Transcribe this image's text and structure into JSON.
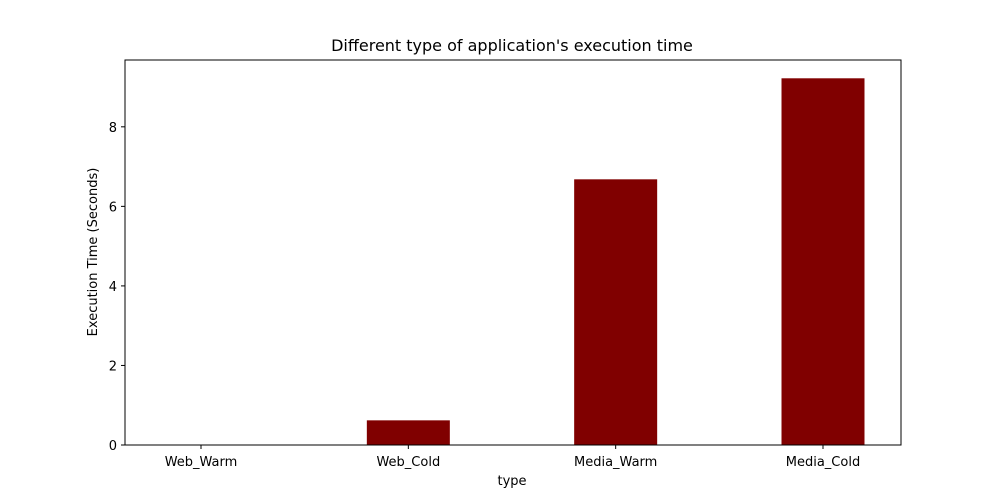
{
  "chart_data": {
    "type": "bar",
    "title": "Different type of application's execution time",
    "xlabel": "type",
    "ylabel": "Execution Time (Seconds)",
    "categories": [
      "Web_Warm",
      "Web_Cold",
      "Media_Warm",
      "Media_Cold"
    ],
    "values": [
      0.0,
      0.62,
      6.68,
      9.22
    ],
    "ylim": [
      0,
      9.68
    ],
    "yticks": [
      0,
      2,
      4,
      6,
      8
    ],
    "bar_color": "#800000",
    "grid": false,
    "legend": "none"
  }
}
